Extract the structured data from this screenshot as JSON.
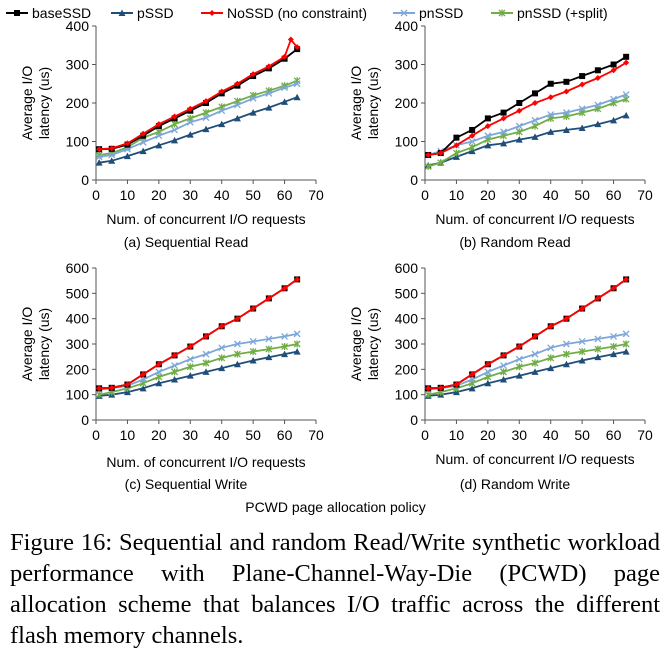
{
  "legend": [
    {
      "name": "baseSSD",
      "color": "#000000",
      "marker": "square"
    },
    {
      "name": "pSSD",
      "color": "#1F4E79",
      "marker": "triangle"
    },
    {
      "name": "NoSSD (no constraint)",
      "color": "#FF0000",
      "marker": "diamond"
    },
    {
      "name": "pnSSD",
      "color": "#7DA7D9",
      "marker": "x"
    },
    {
      "name": "pnSSD (+split)",
      "color": "#70AD47",
      "marker": "star"
    }
  ],
  "policy_label": "PCWD page allocation policy",
  "caption": "Figure 16: Sequential and random Read/Write synthetic workload performance with Plane-Channel-Way-Die (PCWD) page allocation scheme that balances I/O traffic across the different flash memory channels.",
  "chart_data": [
    {
      "type": "line",
      "title": "(a) Sequential Read",
      "xlabel": "Num. of concurrent I/O requests",
      "ylabel": "Average I/O latency (us)",
      "xlim": [
        0,
        70
      ],
      "ylim": [
        0,
        400
      ],
      "xticks": [
        0,
        10,
        20,
        30,
        40,
        50,
        60,
        70
      ],
      "yticks": [
        0,
        100,
        200,
        300,
        400
      ],
      "grid": false,
      "series": [
        {
          "name": "baseSSD",
          "x": [
            1,
            5,
            10,
            15,
            20,
            25,
            30,
            35,
            40,
            45,
            50,
            55,
            60,
            64
          ],
          "y": [
            80,
            81,
            92,
            115,
            140,
            160,
            180,
            200,
            225,
            245,
            270,
            290,
            315,
            340
          ]
        },
        {
          "name": "pSSD",
          "x": [
            1,
            5,
            10,
            15,
            20,
            25,
            30,
            35,
            40,
            45,
            50,
            55,
            60,
            64
          ],
          "y": [
            45,
            50,
            62,
            75,
            90,
            103,
            118,
            132,
            145,
            160,
            175,
            188,
            203,
            215
          ]
        },
        {
          "name": "NoSSD (no constraint)",
          "x": [
            1,
            5,
            10,
            15,
            20,
            25,
            30,
            35,
            40,
            45,
            50,
            55,
            60,
            62,
            64
          ],
          "y": [
            80,
            82,
            95,
            120,
            145,
            165,
            185,
            205,
            230,
            250,
            275,
            295,
            320,
            365,
            345
          ]
        },
        {
          "name": "pnSSD",
          "x": [
            1,
            5,
            10,
            15,
            20,
            25,
            30,
            35,
            40,
            45,
            50,
            55,
            60,
            64
          ],
          "y": [
            60,
            65,
            80,
            98,
            115,
            130,
            150,
            162,
            180,
            195,
            212,
            225,
            240,
            250
          ]
        },
        {
          "name": "pnSSD (+split)",
          "x": [
            1,
            5,
            10,
            15,
            20,
            25,
            30,
            35,
            40,
            45,
            50,
            55,
            60,
            64
          ],
          "y": [
            65,
            70,
            85,
            110,
            125,
            145,
            160,
            175,
            190,
            205,
            220,
            232,
            245,
            258
          ]
        }
      ]
    },
    {
      "type": "line",
      "title": "(b) Random Read",
      "xlabel": "Num. of concurrent I/O requests",
      "ylabel": "Average I/O latency (us)",
      "xlim": [
        0,
        70
      ],
      "ylim": [
        0,
        400
      ],
      "xticks": [
        0,
        10,
        20,
        30,
        40,
        50,
        60,
        70
      ],
      "yticks": [
        0,
        100,
        200,
        300,
        400
      ],
      "grid": false,
      "series": [
        {
          "name": "baseSSD",
          "x": [
            1,
            5,
            10,
            15,
            20,
            25,
            30,
            35,
            40,
            45,
            50,
            55,
            60,
            64
          ],
          "y": [
            65,
            70,
            110,
            130,
            160,
            175,
            200,
            225,
            250,
            255,
            270,
            285,
            300,
            320
          ]
        },
        {
          "name": "pSSD",
          "x": [
            1,
            5,
            10,
            15,
            20,
            25,
            30,
            35,
            40,
            45,
            50,
            55,
            60,
            64
          ],
          "y": [
            38,
            45,
            60,
            75,
            90,
            95,
            105,
            112,
            125,
            130,
            135,
            145,
            155,
            168
          ]
        },
        {
          "name": "NoSSD (no constraint)",
          "x": [
            1,
            5,
            10,
            15,
            20,
            25,
            30,
            35,
            40,
            45,
            50,
            55,
            60,
            64
          ],
          "y": [
            65,
            70,
            90,
            115,
            140,
            160,
            180,
            200,
            215,
            230,
            248,
            265,
            285,
            305
          ]
        },
        {
          "name": "pnSSD",
          "x": [
            1,
            5,
            10,
            15,
            20,
            25,
            30,
            35,
            40,
            45,
            50,
            55,
            60,
            64
          ],
          "y": [
            65,
            75,
            90,
            100,
            115,
            125,
            140,
            155,
            170,
            175,
            185,
            195,
            210,
            222
          ]
        },
        {
          "name": "pnSSD (+split)",
          "x": [
            1,
            5,
            10,
            15,
            20,
            25,
            30,
            35,
            40,
            45,
            50,
            55,
            60,
            64
          ],
          "y": [
            35,
            45,
            70,
            85,
            105,
            115,
            125,
            140,
            160,
            165,
            175,
            185,
            200,
            210
          ]
        }
      ]
    },
    {
      "type": "line",
      "title": "(c) Sequential Write",
      "xlabel": "Num. of concurrent I/O requests",
      "ylabel": "Average I/O latency (us)",
      "xlim": [
        0,
        70
      ],
      "ylim": [
        0,
        600
      ],
      "xticks": [
        0,
        10,
        20,
        30,
        40,
        50,
        60,
        70
      ],
      "yticks": [
        0,
        100,
        200,
        300,
        400,
        500,
        600
      ],
      "grid": false,
      "series": [
        {
          "name": "baseSSD",
          "x": [
            1,
            5,
            10,
            15,
            20,
            25,
            30,
            35,
            40,
            45,
            50,
            55,
            60,
            64
          ],
          "y": [
            125,
            127,
            140,
            180,
            220,
            255,
            290,
            330,
            370,
            400,
            440,
            480,
            520,
            555
          ]
        },
        {
          "name": "pSSD",
          "x": [
            1,
            5,
            10,
            15,
            20,
            25,
            30,
            35,
            40,
            45,
            50,
            55,
            60,
            64
          ],
          "y": [
            95,
            100,
            110,
            125,
            145,
            160,
            175,
            190,
            205,
            220,
            235,
            248,
            260,
            270
          ]
        },
        {
          "name": "NoSSD (no constraint)",
          "x": [
            1,
            5,
            10,
            15,
            20,
            25,
            30,
            35,
            40,
            45,
            50,
            55,
            60,
            64
          ],
          "y": [
            125,
            127,
            140,
            180,
            220,
            255,
            290,
            330,
            370,
            400,
            440,
            480,
            520,
            555
          ]
        },
        {
          "name": "pnSSD",
          "x": [
            1,
            5,
            10,
            15,
            20,
            25,
            30,
            35,
            40,
            45,
            50,
            55,
            60,
            64
          ],
          "y": [
            120,
            125,
            135,
            160,
            190,
            215,
            240,
            260,
            285,
            300,
            310,
            320,
            330,
            340
          ]
        },
        {
          "name": "pnSSD (+split)",
          "x": [
            1,
            5,
            10,
            15,
            20,
            25,
            30,
            35,
            40,
            45,
            50,
            55,
            60,
            64
          ],
          "y": [
            100,
            110,
            125,
            145,
            170,
            190,
            210,
            225,
            245,
            260,
            270,
            280,
            290,
            300
          ]
        }
      ]
    },
    {
      "type": "line",
      "title": "(d) Random Write",
      "xlabel": "Num. of concurrent I/O requests",
      "ylabel": "Average I/O latency (us)",
      "xlim": [
        0,
        70
      ],
      "ylim": [
        0,
        600
      ],
      "xticks": [
        0,
        10,
        20,
        30,
        40,
        50,
        60,
        70
      ],
      "yticks": [
        0,
        100,
        200,
        300,
        400,
        500,
        600
      ],
      "grid": false,
      "series": [
        {
          "name": "baseSSD",
          "x": [
            1,
            5,
            10,
            15,
            20,
            25,
            30,
            35,
            40,
            45,
            50,
            55,
            60,
            64
          ],
          "y": [
            125,
            127,
            140,
            180,
            220,
            255,
            290,
            330,
            370,
            400,
            440,
            480,
            520,
            555
          ]
        },
        {
          "name": "pSSD",
          "x": [
            1,
            5,
            10,
            15,
            20,
            25,
            30,
            35,
            40,
            45,
            50,
            55,
            60,
            64
          ],
          "y": [
            95,
            100,
            110,
            125,
            145,
            160,
            175,
            190,
            205,
            220,
            235,
            248,
            260,
            270
          ]
        },
        {
          "name": "NoSSD (no constraint)",
          "x": [
            1,
            5,
            10,
            15,
            20,
            25,
            30,
            35,
            40,
            45,
            50,
            55,
            60,
            64
          ],
          "y": [
            125,
            127,
            140,
            180,
            220,
            255,
            290,
            330,
            370,
            400,
            440,
            480,
            520,
            555
          ]
        },
        {
          "name": "pnSSD",
          "x": [
            1,
            5,
            10,
            15,
            20,
            25,
            30,
            35,
            40,
            45,
            50,
            55,
            60,
            64
          ],
          "y": [
            120,
            125,
            135,
            160,
            190,
            215,
            240,
            260,
            285,
            300,
            310,
            320,
            330,
            340
          ]
        },
        {
          "name": "pnSSD (+split)",
          "x": [
            1,
            5,
            10,
            15,
            20,
            25,
            30,
            35,
            40,
            45,
            50,
            55,
            60,
            64
          ],
          "y": [
            100,
            110,
            125,
            145,
            170,
            190,
            210,
            225,
            245,
            260,
            270,
            280,
            290,
            300
          ]
        }
      ]
    }
  ]
}
